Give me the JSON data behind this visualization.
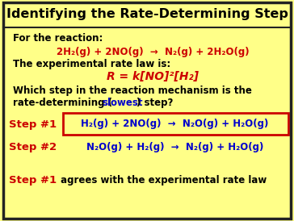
{
  "bg_color": "#FFFF88",
  "title": "Identifying the Rate-Determining Step",
  "title_color": "#000000",
  "border_color": "#222222",
  "body_bg": "#FFFF88",
  "font": "DejaVu Sans",
  "title_size": 11.5,
  "for_reaction_label": "For the reaction:",
  "reaction_eq": "2H₂(g) + 2NO(g)  →  N₂(g) + 2H₂O(g)",
  "rate_law_label": "The experimental rate law is:",
  "rate_law_eq": "R = k[NO]²[H₂]",
  "which_step_line1": "Which step in the reaction mechanism is the",
  "which_step_line2_a": "rate-determining (",
  "which_step_line2_b": "slowest",
  "which_step_line2_c": ") step?",
  "step1_label": "Step #1",
  "step1_eq": "H₂(g) + 2NO(g)  →  N₂O(g) + H₂O(g)",
  "step2_label": "Step #2",
  "step2_eq": "N₂O(g) + H₂(g)  →  N₂(g) + H₂O(g)",
  "concl_a": "Step #1",
  "concl_b": " agrees with the experimental rate law",
  "red_color": "#CC0000",
  "blue_color": "#0000CC",
  "black_color": "#000000",
  "box_edge_color": "#CC0000"
}
